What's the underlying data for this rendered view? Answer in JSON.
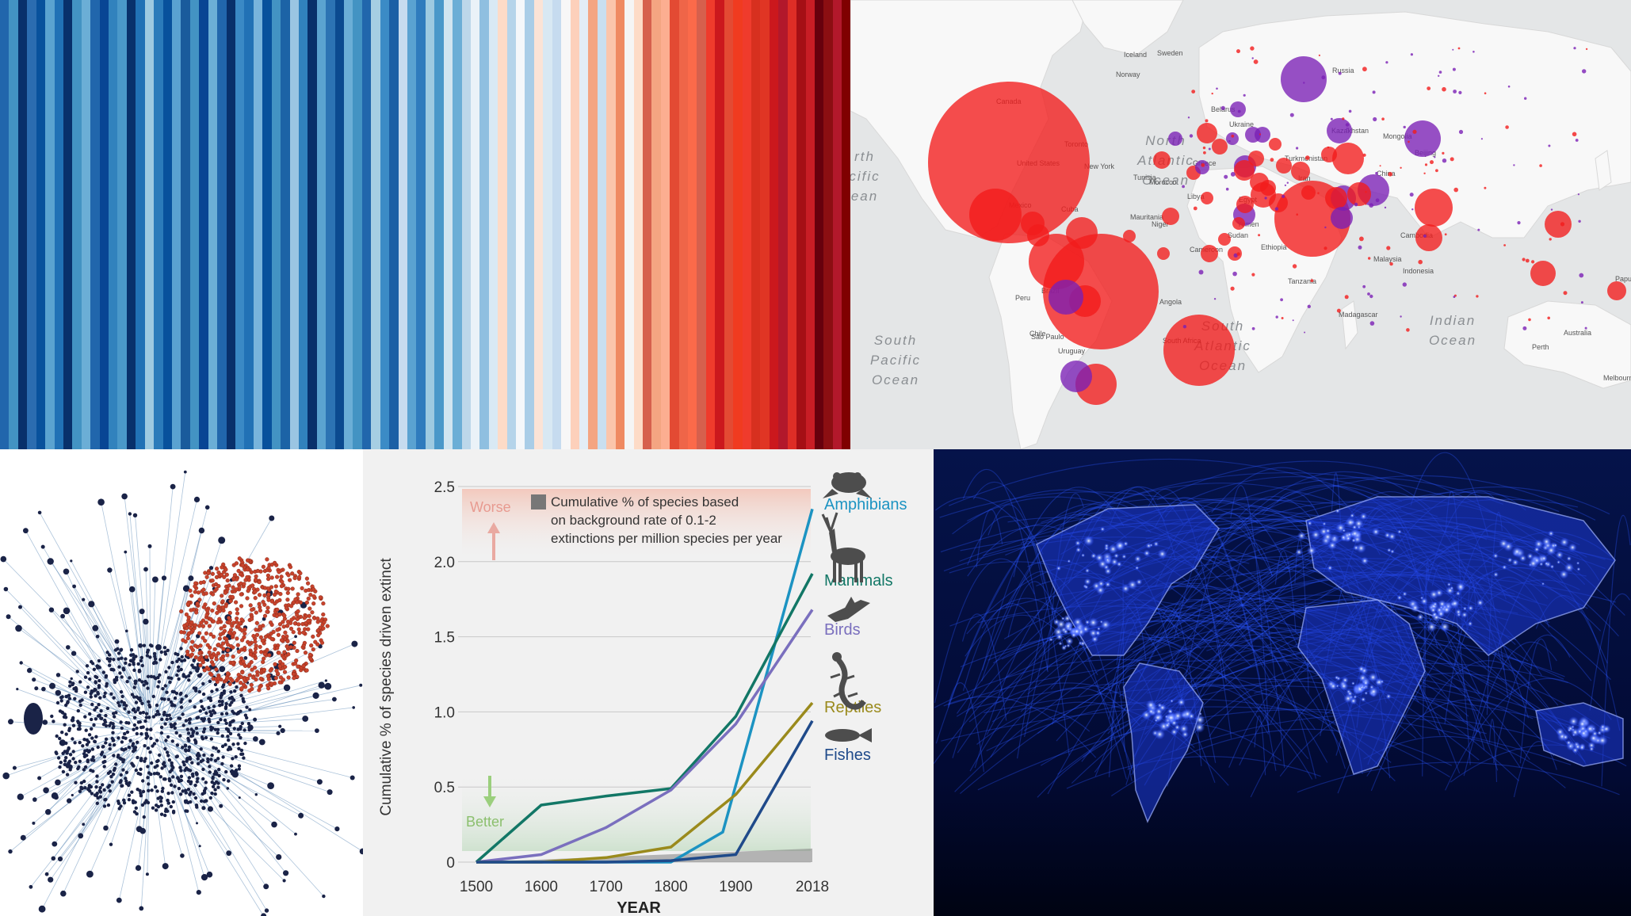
{
  "warming_stripes": {
    "colors": [
      "#2166ac",
      "#4393c3",
      "#08306b",
      "#2b6cb0",
      "#08519c",
      "#5ba3d0",
      "#2171b5",
      "#08306b",
      "#4393c3",
      "#6baed6",
      "#2166ac",
      "#084594",
      "#3182bd",
      "#4a98c9",
      "#08306b",
      "#2171b5",
      "#9ecae1",
      "#2b7bba",
      "#08519c",
      "#5aa2d1",
      "#1a5b9c",
      "#4393c3",
      "#084594",
      "#6baed6",
      "#2166ac",
      "#08306b",
      "#3a89c5",
      "#2171b5",
      "#78b4dc",
      "#08519c",
      "#4393c3",
      "#1c63a6",
      "#9ac5e2",
      "#3182bd",
      "#08306b",
      "#5ba3d0",
      "#2c73b3",
      "#0b4a8f",
      "#6baed6",
      "#4393c3",
      "#2166ac",
      "#a6cee3",
      "#3b8bc6",
      "#1b5fa5",
      "#c6dbef",
      "#5aa2d1",
      "#2f7bbd",
      "#9ecae1",
      "#4a98c9",
      "#d1e5f0",
      "#6baed6",
      "#bcd7ea",
      "#eaf2f8",
      "#8fbfe0",
      "#d9e9f4",
      "#fddbc7",
      "#b5d4ea",
      "#f4f7fa",
      "#a9cde7",
      "#fbe3d6",
      "#d8e8f3",
      "#c6dbef",
      "#f7f7f7",
      "#fdd0bb",
      "#e3edf6",
      "#f4a582",
      "#c9dff0",
      "#fbc5ab",
      "#ef8a62",
      "#f5f5f5",
      "#fddbc7",
      "#d6604d",
      "#f4a582",
      "#fcae91",
      "#e34a33",
      "#ef6548",
      "#fb6a4a",
      "#d6604d",
      "#ef3b2c",
      "#cb181d",
      "#e34a33",
      "#f03b20",
      "#ef3b2c",
      "#d7301f",
      "#e03524",
      "#cb181d",
      "#b2182b",
      "#de2d26",
      "#a50f15",
      "#c81d25",
      "#67000d",
      "#8b0e12",
      "#b2182b",
      "#7f0000"
    ]
  },
  "map": {
    "oceans": [
      {
        "label": "North Atlantic Ocean",
        "lines": [
          "North",
          "Atlantic",
          "Ocean"
        ]
      },
      {
        "label": "South Atlantic Ocean",
        "lines": [
          "South",
          "Atlantic",
          "Ocean"
        ]
      },
      {
        "label": "South Pacific Ocean",
        "lines": [
          "South",
          "Pacific",
          "Ocean"
        ]
      },
      {
        "label": "Indian Ocean",
        "lines": [
          "Indian",
          "Ocean"
        ]
      },
      {
        "label": "North Pacific Ocean (cropped)",
        "lines": [
          "rth",
          "cific",
          "ean"
        ]
      }
    ],
    "places": [
      "Iceland",
      "Sweden",
      "Norway",
      "Russia",
      "Canada",
      "United States",
      "Toronto",
      "New York",
      "Belarus",
      "Ukraine",
      "Kazakhstan",
      "Mongolia",
      "Beijing",
      "China",
      "Greece",
      "Morocco",
      "Tunisia",
      "Libya",
      "Egypt",
      "Turkmenistan",
      "Iran",
      "Mauritania",
      "Niger",
      "Sudan",
      "Yemen",
      "Ethiopia",
      "Tanzania",
      "Angola",
      "South Africa",
      "Madagascar",
      "Malaysia",
      "Cambodia",
      "Indonesia",
      "Papua New Guinea",
      "Australia",
      "Perth",
      "Melbourne",
      "Brazil",
      "São Paulo",
      "Chile",
      "Uruguay",
      "Peru",
      "Cuba",
      "Mexico",
      "Cameroon"
    ],
    "colors": {
      "land": "#f7f7f7",
      "water": "#e4e6e7",
      "red_bubble": "#f21b1b",
      "purple_bubble": "#7a1fb5"
    }
  },
  "network": {
    "colors": {
      "cluster_a": "#c8432c",
      "cluster_b": "#1a2347",
      "edges": "#5a87b6"
    }
  },
  "extinction_chart": {
    "chart_data": {
      "type": "line",
      "xlabel": "YEAR",
      "ylabel": "Cumulative % of species driven extinct",
      "x_ticks": [
        "1500",
        "1600",
        "1700",
        "1800",
        "1900",
        "2018"
      ],
      "y_ticks": [
        "0",
        "0.5",
        "1.0",
        "1.5",
        "2.0",
        "2.5"
      ],
      "ylim": [
        0,
        2.5
      ],
      "x": [
        1500,
        1600,
        1700,
        1800,
        1900,
        2018
      ],
      "series": [
        {
          "name": "Amphibians",
          "color": "#1c93c2",
          "points": [
            [
              1500,
              0
            ],
            [
              1600,
              0
            ],
            [
              1700,
              0
            ],
            [
              1800,
              0
            ],
            [
              1880,
              0.2
            ],
            [
              2018,
              2.35
            ]
          ]
        },
        {
          "name": "Mammals",
          "color": "#127766",
          "points": [
            [
              1500,
              0
            ],
            [
              1600,
              0.38
            ],
            [
              1700,
              0.44
            ],
            [
              1800,
              0.49
            ],
            [
              1900,
              0.97
            ],
            [
              2018,
              1.92
            ]
          ]
        },
        {
          "name": "Birds",
          "color": "#7a6fbe",
          "points": [
            [
              1500,
              0
            ],
            [
              1600,
              0.05
            ],
            [
              1700,
              0.23
            ],
            [
              1800,
              0.48
            ],
            [
              1900,
              0.92
            ],
            [
              2018,
              1.68
            ]
          ]
        },
        {
          "name": "Reptiles",
          "color": "#9a8a1c",
          "points": [
            [
              1500,
              0
            ],
            [
              1600,
              0
            ],
            [
              1700,
              0.03
            ],
            [
              1800,
              0.1
            ],
            [
              1900,
              0.45
            ],
            [
              2018,
              1.06
            ]
          ]
        },
        {
          "name": "Fishes",
          "color": "#1f4a8a",
          "points": [
            [
              1500,
              0
            ],
            [
              1600,
              0
            ],
            [
              1700,
              0
            ],
            [
              1800,
              0.01
            ],
            [
              1900,
              0.05
            ],
            [
              2018,
              0.94
            ]
          ]
        }
      ],
      "background_band": {
        "label_lines": [
          "Cumulative % of species based",
          "on background rate of 0.1-2",
          "extinctions per million species per year"
        ],
        "color": "#808080"
      },
      "annotations": {
        "worse": "Worse",
        "better": "Better"
      }
    }
  },
  "night_lights": {
    "colors": {
      "background": "#020a2e",
      "links": "#2c56ff",
      "cities": "#ffffff"
    }
  }
}
